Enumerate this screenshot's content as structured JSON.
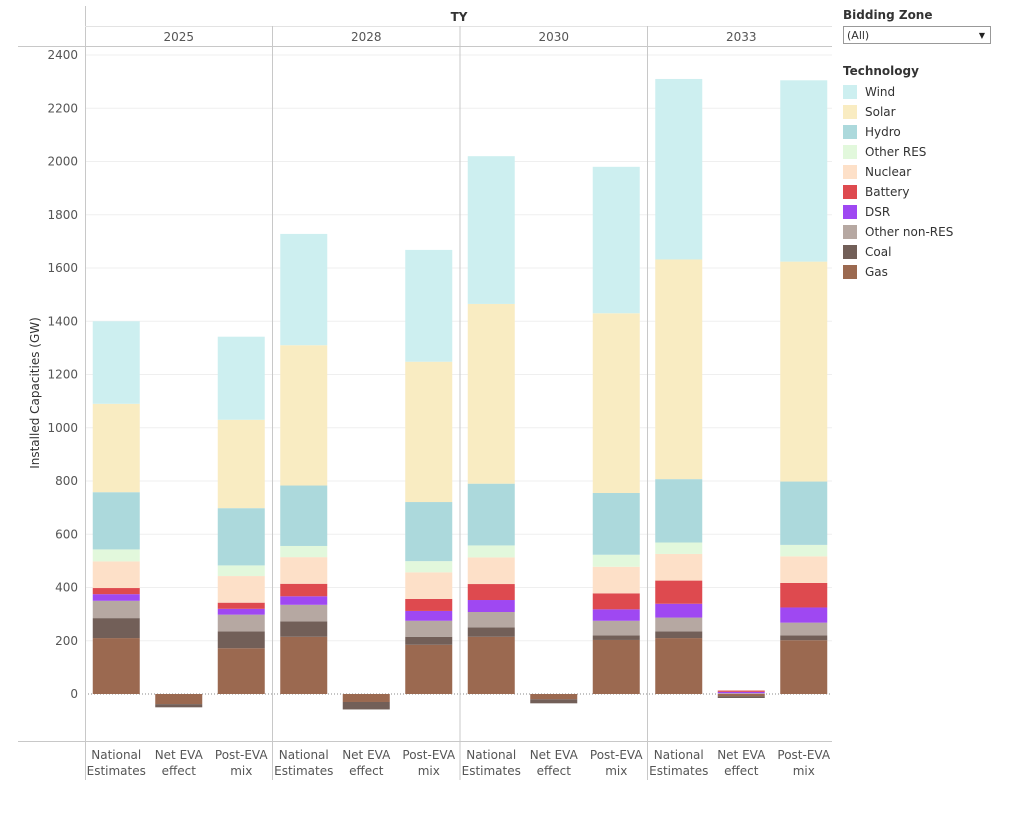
{
  "header": {
    "column_group_label": "TY"
  },
  "filter": {
    "label": "Bidding Zone",
    "value": "(All)"
  },
  "legend": {
    "title": "Technology"
  },
  "chart_data": {
    "type": "bar",
    "stacked": true,
    "ylabel": "Installed Capacities (GW)",
    "ylim": [
      -80,
      2450
    ],
    "yticks": [
      0,
      200,
      400,
      600,
      800,
      1000,
      1200,
      1400,
      1600,
      1800,
      2000,
      2200,
      2400
    ],
    "grid": true,
    "legend_position": "right",
    "years": [
      "2025",
      "2028",
      "2030",
      "2033"
    ],
    "categories": [
      [
        "National",
        "Estimates"
      ],
      [
        "Net EVA",
        "effect"
      ],
      [
        "Post-EVA",
        "mix"
      ]
    ],
    "series_order": [
      "Gas",
      "Coal",
      "Other non-RES",
      "DSR",
      "Battery",
      "Nuclear",
      "Other RES",
      "Hydro",
      "Solar",
      "Wind"
    ],
    "colors": {
      "Wind": "#cdeff0",
      "Solar": "#f9ecc2",
      "Hydro": "#acd9dc",
      "Other RES": "#e2f8dc",
      "Nuclear": "#fde0c8",
      "Battery": "#de4a4f",
      "DSR": "#9f48f2",
      "Other non-RES": "#b6a8a2",
      "Coal": "#725f58",
      "Gas": "#9b6950"
    },
    "data": {
      "2025": {
        "National Estimates": {
          "Gas": 210,
          "Coal": 75,
          "Other non-RES": 65,
          "DSR": 25,
          "Battery": 23,
          "Nuclear": 100,
          "Other RES": 45,
          "Hydro": 215,
          "Solar": 332,
          "Wind": 310
        },
        "Net EVA effect": {
          "Gas": -38,
          "Coal": -12
        },
        "Post-EVA mix": {
          "Gas": 172,
          "Coal": 63,
          "Other non-RES": 63,
          "DSR": 22,
          "Battery": 23,
          "Nuclear": 100,
          "Other RES": 40,
          "Hydro": 215,
          "Solar": 332,
          "Wind": 312
        }
      },
      "2028": {
        "National Estimates": {
          "Gas": 215,
          "Coal": 58,
          "Other non-RES": 62,
          "DSR": 32,
          "Battery": 47,
          "Nuclear": 100,
          "Other RES": 42,
          "Hydro": 227,
          "Solar": 527,
          "Wind": 418
        },
        "Net EVA effect": {
          "Gas": -30,
          "Coal": -28
        },
        "Post-EVA mix": {
          "Gas": 185,
          "Coal": 30,
          "Other non-RES": 60,
          "DSR": 37,
          "Battery": 45,
          "Nuclear": 100,
          "Other RES": 42,
          "Hydro": 222,
          "Solar": 527,
          "Wind": 420
        }
      },
      "2030": {
        "National Estimates": {
          "Gas": 215,
          "Coal": 35,
          "Other non-RES": 58,
          "DSR": 45,
          "Battery": 60,
          "Nuclear": 100,
          "Other RES": 45,
          "Hydro": 232,
          "Solar": 675,
          "Wind": 555
        },
        "Net EVA effect": {
          "Gas": -20,
          "Coal": -15
        },
        "Post-EVA mix": {
          "Gas": 203,
          "Coal": 17,
          "Other non-RES": 55,
          "DSR": 43,
          "Battery": 60,
          "Nuclear": 100,
          "Other RES": 45,
          "Hydro": 232,
          "Solar": 675,
          "Wind": 550
        }
      },
      "2033": {
        "National Estimates": {
          "Gas": 210,
          "Coal": 25,
          "Other non-RES": 52,
          "DSR": 52,
          "Battery": 87,
          "Nuclear": 100,
          "Other RES": 43,
          "Hydro": 238,
          "Solar": 825,
          "Wind": 678
        },
        "Net EVA effect": {
          "Gas": -8,
          "Coal": -7,
          "Other non-RES": 3,
          "DSR": 5,
          "Battery": 5
        },
        "Post-EVA mix": {
          "Gas": 202,
          "Coal": 18,
          "Other non-RES": 48,
          "DSR": 57,
          "Battery": 92,
          "Nuclear": 100,
          "Other RES": 43,
          "Hydro": 238,
          "Solar": 826,
          "Wind": 681
        }
      }
    }
  }
}
